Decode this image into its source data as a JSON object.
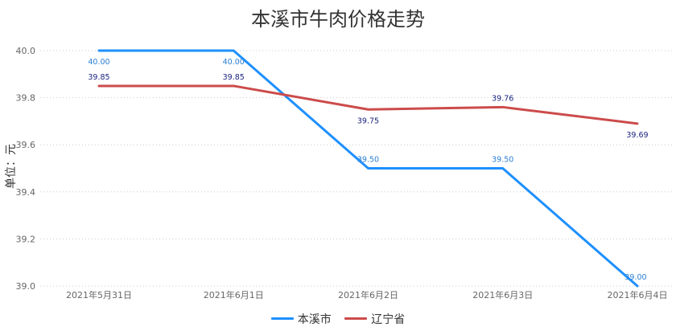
{
  "chart_data": {
    "type": "line",
    "title": "本溪市牛肉价格走势",
    "ylabel": "单位：元",
    "xlabel": "",
    "categories": [
      "2021年5月31日",
      "2021年6月1日",
      "2021年6月2日",
      "2021年6月3日",
      "2021年6月4日"
    ],
    "ylim": [
      39.0,
      40.0
    ],
    "yticks": [
      "39.0",
      "39.2",
      "39.4",
      "39.6",
      "39.8",
      "40.0"
    ],
    "grid": true,
    "legend_position": "bottom",
    "series": [
      {
        "name": "本溪市",
        "color": "#1e90ff",
        "label_color": "#2a7fd4",
        "values": [
          40.0,
          40.0,
          39.5,
          39.5,
          39.0
        ],
        "labels": [
          "40.00",
          "40.00",
          "39.50",
          "39.50",
          "39.00"
        ]
      },
      {
        "name": "辽宁省",
        "color": "#cc4b4b",
        "label_color": "#1a237e",
        "values": [
          39.85,
          39.85,
          39.75,
          39.76,
          39.69
        ],
        "labels": [
          "39.85",
          "39.85",
          "39.75",
          "39.76",
          "39.69"
        ]
      }
    ]
  }
}
